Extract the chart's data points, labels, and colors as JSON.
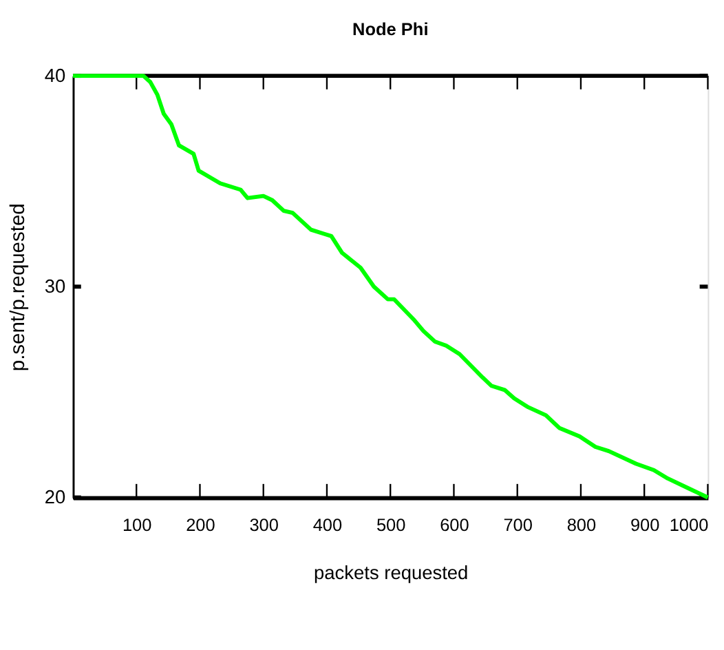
{
  "chart_data": {
    "type": "line",
    "title": "Node Phi",
    "xlabel": "packets requested",
    "ylabel": "p.sent/p.requested",
    "x": [
      0,
      111,
      122,
      133,
      143,
      155,
      167,
      190,
      198,
      232,
      264,
      275,
      300,
      314,
      332,
      346,
      375,
      396,
      407,
      424,
      453,
      474,
      496,
      506,
      538,
      552,
      570,
      588,
      609,
      645,
      659,
      680,
      695,
      716,
      745,
      766,
      798,
      823,
      844,
      887,
      915,
      937,
      972,
      1000
    ],
    "series": [
      {
        "color": "#00ff00",
        "values": [
          40,
          40,
          39.7,
          39.1,
          38.2,
          37.7,
          36.7,
          36.3,
          35.5,
          34.9,
          34.6,
          34.2,
          34.3,
          34.1,
          33.6,
          33.5,
          32.7,
          32.5,
          32.4,
          31.6,
          30.9,
          30.0,
          29.4,
          29.4,
          28.4,
          27.9,
          27.4,
          27.2,
          26.8,
          25.7,
          25.3,
          25.1,
          24.7,
          24.3,
          23.9,
          23.3,
          22.9,
          22.4,
          22.2,
          21.6,
          21.3,
          20.9,
          20.4,
          20.0
        ]
      }
    ],
    "xlim": [
      0,
      1000
    ],
    "xticks": [
      100,
      200,
      300,
      400,
      500,
      600,
      700,
      800,
      900,
      1000
    ],
    "ylim": [
      20,
      40
    ],
    "yticks": [
      20,
      30,
      40
    ],
    "grid": false,
    "legend": false,
    "marker": "none",
    "line_style": "solid"
  }
}
